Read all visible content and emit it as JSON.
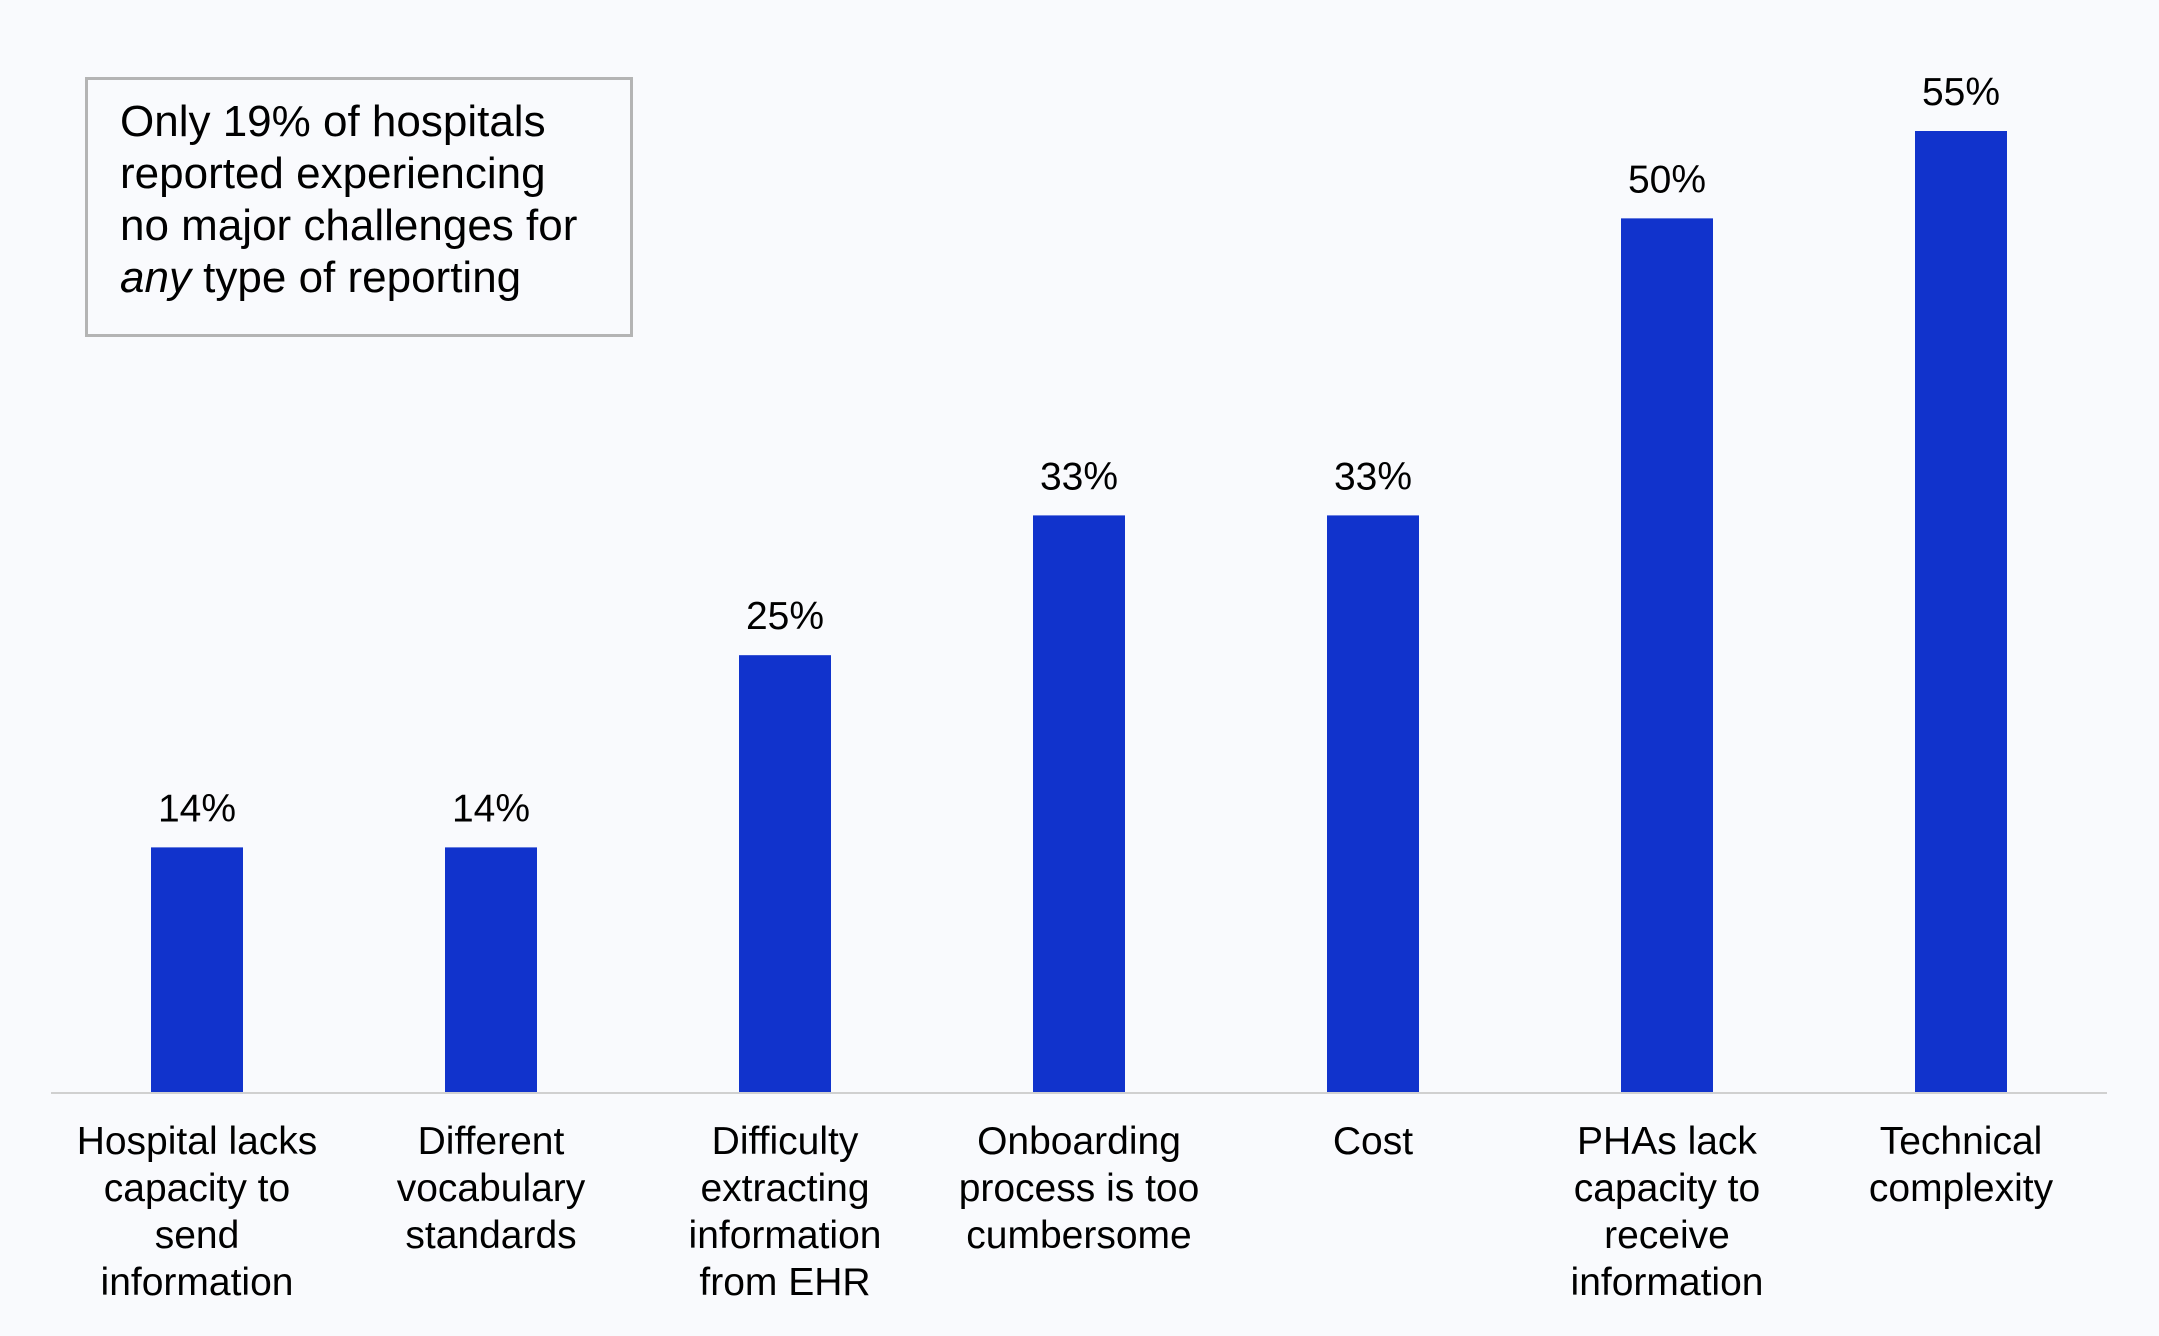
{
  "annotation": {
    "lines": [
      "Only 19% of hospitals",
      "reported experiencing",
      "no major challenges for"
    ],
    "last_line_italic": "any",
    "last_line_rest": " type of reporting"
  },
  "chart_data": {
    "type": "bar",
    "categories": [
      [
        "Hospital lacks",
        "capacity to",
        "send",
        "information"
      ],
      [
        "Different",
        "vocabulary",
        "standards"
      ],
      [
        "Difficulty",
        "extracting",
        "information",
        "from EHR"
      ],
      [
        "Onboarding",
        "process is too",
        "cumbersome"
      ],
      [
        "Cost"
      ],
      [
        "PHAs lack",
        "capacity to",
        "receive",
        "information"
      ],
      [
        "Technical",
        "complexity"
      ]
    ],
    "values": [
      14,
      14,
      25,
      33,
      33,
      50,
      55
    ],
    "value_labels": [
      "14%",
      "14%",
      "25%",
      "33%",
      "33%",
      "50%",
      "55%"
    ],
    "ylim": [
      0,
      55
    ],
    "grid": false,
    "axis_y_visible": false,
    "bar_color": "#1133cc",
    "axis_color": "#d0d0d0"
  }
}
